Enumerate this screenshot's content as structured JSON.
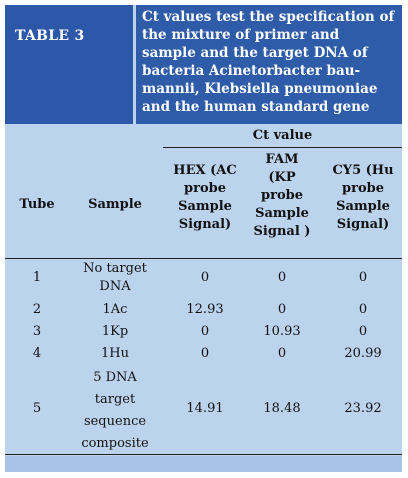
{
  "table": {
    "label": "TABLE  3",
    "title": "Ct values test the specification of the mixture of primer  and sample and the target DNA of bacteria Acinetorbacter bau-mannii, Klebsiella pneumoniae and the human standard gene",
    "group_header": "Ct value",
    "headers": {
      "tube": "Tube",
      "sample": "Sample",
      "hex": "HEX (AC probe Sample Signal)",
      "fam": "FAM (KP probe Sample Signal )",
      "cy5": "CY5 (Hu probe Sample Signal)"
    },
    "rows": [
      {
        "tube": "1",
        "sample": "No target DNA",
        "hex": "0",
        "fam": "0",
        "cy5": "0"
      },
      {
        "tube": "2",
        "sample": "1Ac",
        "hex": "12.93",
        "fam": "0",
        "cy5": "0"
      },
      {
        "tube": "3",
        "sample": "1Kp",
        "hex": "0",
        "fam": "10.93",
        "cy5": "0"
      },
      {
        "tube": "4",
        "sample": "1Hu",
        "hex": "0",
        "fam": "0",
        "cy5": "20.99"
      },
      {
        "tube": "5",
        "sample": "5 DNA target sequence composite",
        "hex": "14.91",
        "fam": "18.48",
        "cy5": "23.92"
      }
    ]
  },
  "colors": {
    "label_bg": "#2d57a8",
    "title_bg": "#2f5ca8",
    "table_bg": "#bcd3ee"
  }
}
